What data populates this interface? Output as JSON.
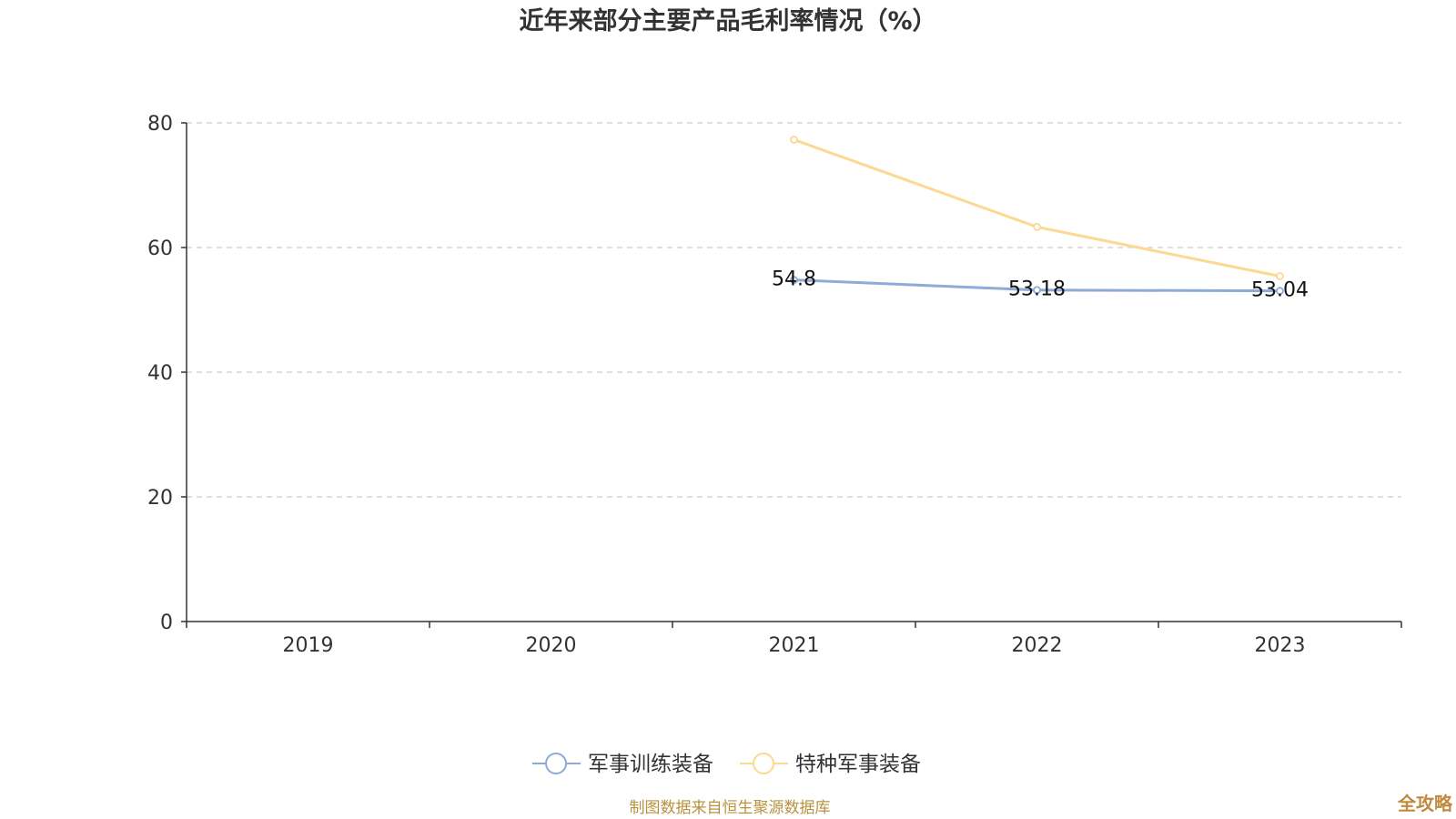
{
  "chart_data": {
    "type": "line",
    "title": "近年来部分主要产品毛利率情况（%）",
    "categories": [
      "2019",
      "2020",
      "2021",
      "2022",
      "2023"
    ],
    "y_ticks": [
      "0",
      "20",
      "40",
      "60",
      "80"
    ],
    "ylim": [
      0,
      80
    ],
    "grid": true,
    "legend_position": "bottom-center",
    "series": [
      {
        "name": "军事训练装备",
        "color": "#8eaad6",
        "values": [
          null,
          null,
          54.8,
          53.18,
          53.04
        ],
        "labels": [
          "",
          "",
          "54.8",
          "53.18",
          "53.04"
        ]
      },
      {
        "name": "特种军事装备",
        "color": "#fbd990",
        "values": [
          null,
          null,
          77.3,
          63.3,
          55.4
        ],
        "labels": [
          "",
          "",
          "",
          "",
          ""
        ]
      }
    ]
  },
  "footer": {
    "source": "制图数据来自恒生聚源数据库",
    "watermark": "全攻略"
  }
}
